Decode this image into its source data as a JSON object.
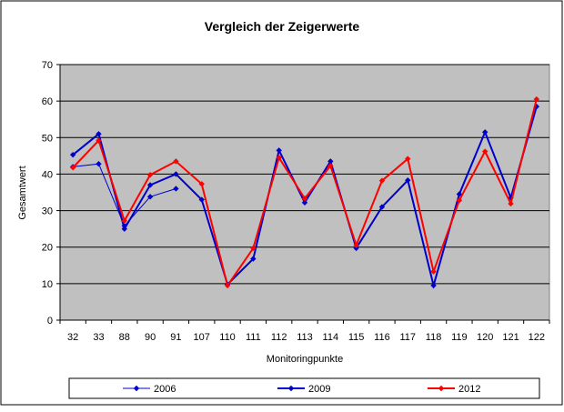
{
  "chart_data": {
    "type": "line",
    "title": "Vergleich der Zeigerwerte",
    "xlabel": "Monitoringpunkte",
    "ylabel": "Gesamtwert",
    "ylim": [
      0,
      70
    ],
    "yticks": [
      0,
      10,
      20,
      30,
      40,
      50,
      60,
      70
    ],
    "grid": true,
    "legend_position": "bottom",
    "categories": [
      "32",
      "33",
      "88",
      "90",
      "91",
      "107",
      "110",
      "111",
      "112",
      "113",
      "114",
      "115",
      "116",
      "117",
      "118",
      "119",
      "120",
      "121",
      "122"
    ],
    "series": [
      {
        "name": "2006",
        "color": "#0000cc",
        "values": [
          42,
          42.8,
          25.8,
          33.8,
          36,
          null,
          null,
          null,
          null,
          null,
          null,
          null,
          null,
          null,
          null,
          null,
          null,
          null,
          null
        ]
      },
      {
        "name": "2009",
        "color": "#0000cc",
        "values": [
          45.3,
          51,
          25,
          37,
          40,
          33,
          9.8,
          16.8,
          46.5,
          32.2,
          43.5,
          19.7,
          31,
          38.3,
          9.5,
          34.5,
          51.5,
          33.5,
          58.5
        ]
      },
      {
        "name": "2012",
        "color": "#ff0000",
        "values": [
          41.8,
          49.2,
          27.2,
          39.8,
          43.5,
          37.3,
          9.5,
          19.7,
          44.5,
          33.3,
          42.3,
          20.5,
          38.2,
          44.2,
          13.3,
          32.8,
          46.2,
          31.9,
          60.5
        ]
      }
    ]
  }
}
